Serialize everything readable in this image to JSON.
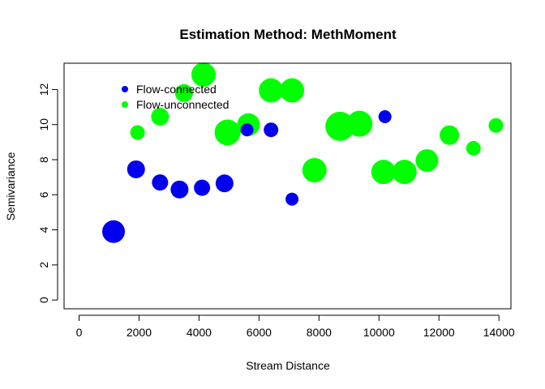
{
  "chart_data": {
    "type": "scatter",
    "title": "Estimation Method: MethMoment",
    "xlabel": "Stream Distance",
    "ylabel": "Semivariance",
    "xlim": [
      -500,
      14400
    ],
    "ylim": [
      -0.5,
      13.5
    ],
    "xticks": [
      0,
      2000,
      4000,
      6000,
      8000,
      10000,
      12000,
      14000
    ],
    "yticks": [
      0,
      2,
      4,
      6,
      8,
      10,
      12
    ],
    "legend_position": "top-left",
    "series": [
      {
        "name": "Flow-connected",
        "color": "#0000ee",
        "points": [
          {
            "x": 1150,
            "y": 3.9,
            "weight": 14
          },
          {
            "x": 1900,
            "y": 7.45,
            "weight": 11
          },
          {
            "x": 2700,
            "y": 6.7,
            "weight": 10
          },
          {
            "x": 3350,
            "y": 6.3,
            "weight": 11
          },
          {
            "x": 4100,
            "y": 6.4,
            "weight": 10
          },
          {
            "x": 4850,
            "y": 6.65,
            "weight": 11
          },
          {
            "x": 5600,
            "y": 9.7,
            "weight": 8
          },
          {
            "x": 6400,
            "y": 9.7,
            "weight": 9
          },
          {
            "x": 7100,
            "y": 5.75,
            "weight": 8
          },
          {
            "x": 10200,
            "y": 10.45,
            "weight": 8
          }
        ]
      },
      {
        "name": "Flow-unconnected",
        "color": "#00ff00",
        "points": [
          {
            "x": 1950,
            "y": 9.55,
            "weight": 9
          },
          {
            "x": 2700,
            "y": 10.45,
            "weight": 11
          },
          {
            "x": 3500,
            "y": 11.8,
            "weight": 11
          },
          {
            "x": 4150,
            "y": 12.85,
            "weight": 15
          },
          {
            "x": 4950,
            "y": 9.55,
            "weight": 16
          },
          {
            "x": 5650,
            "y": 10.0,
            "weight": 14
          },
          {
            "x": 6400,
            "y": 11.95,
            "weight": 15
          },
          {
            "x": 7100,
            "y": 11.95,
            "weight": 15
          },
          {
            "x": 7850,
            "y": 7.4,
            "weight": 15
          },
          {
            "x": 8700,
            "y": 9.9,
            "weight": 18
          },
          {
            "x": 9350,
            "y": 10.05,
            "weight": 16
          },
          {
            "x": 10150,
            "y": 7.3,
            "weight": 15
          },
          {
            "x": 10850,
            "y": 7.3,
            "weight": 15
          },
          {
            "x": 11600,
            "y": 7.95,
            "weight": 14
          },
          {
            "x": 12350,
            "y": 9.4,
            "weight": 12
          },
          {
            "x": 13150,
            "y": 8.65,
            "weight": 9
          },
          {
            "x": 13900,
            "y": 9.95,
            "weight": 9
          }
        ]
      }
    ]
  }
}
